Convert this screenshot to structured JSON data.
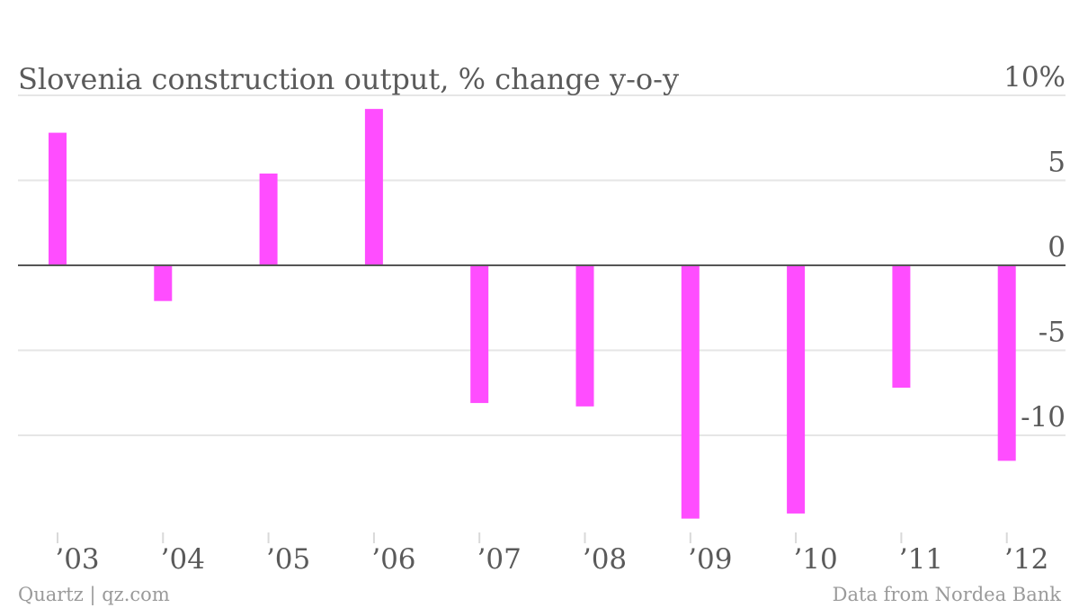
{
  "chart_data": {
    "type": "bar",
    "title": "Slovenia construction output, % change y-o-y",
    "categories": [
      "’03",
      "’04",
      "’05",
      "’06",
      "’07",
      "’08",
      "’09",
      "’10",
      "’11",
      "’12"
    ],
    "series": [
      {
        "values": [
          7.8,
          -2.1,
          5.4,
          9.2,
          -8.1,
          -8.3,
          -14.9,
          -14.6,
          -7.2,
          -11.5
        ]
      }
    ],
    "ylim": [
      -16,
      10
    ],
    "y_ticks": [
      10,
      5,
      0,
      -5,
      -10
    ],
    "y_tick_labels": [
      "10%",
      "5",
      "0",
      "-5",
      "-10"
    ],
    "grid": true,
    "xlabel": "",
    "ylabel": ""
  },
  "colors": {
    "bar": "#ff4dff",
    "grid": "#e6e6e6",
    "zero_line": "#555555",
    "text": "#5a5a5a",
    "credit": "#9a9a9a"
  },
  "footer": {
    "source_left": "Quartz | qz.com",
    "source_right": "Data from Nordea Bank"
  }
}
